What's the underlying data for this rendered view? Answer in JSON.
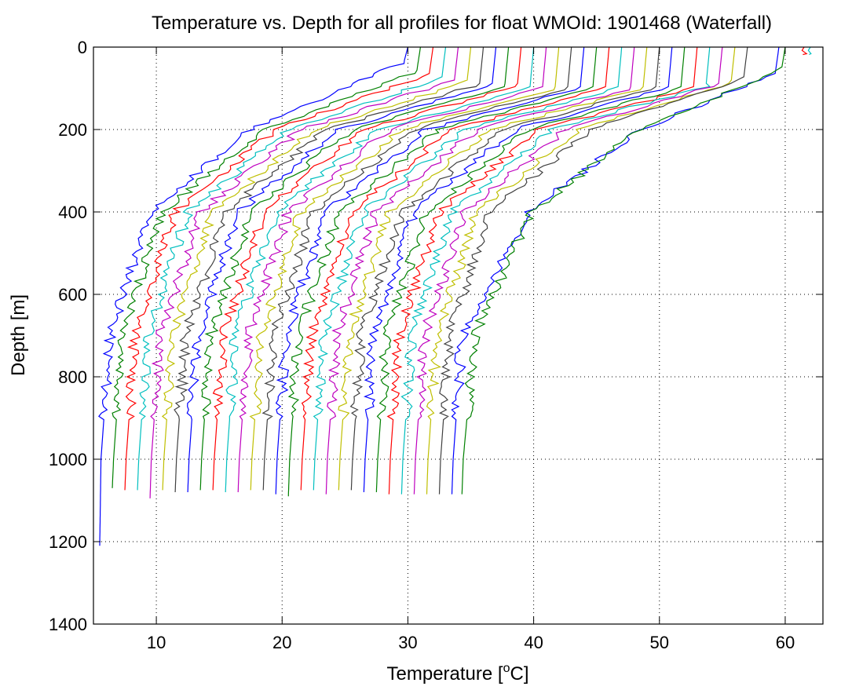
{
  "chart_data": {
    "type": "line",
    "title": "Temperature vs. Depth for all profiles for float WMOId: 1901468 (Waterfall)",
    "xlabel": "Temperature [",
    "xlabel_sup": "o",
    "xlabel_unit": "C]",
    "ylabel": "Depth [m]",
    "xlim": [
      5,
      63
    ],
    "ylim": [
      0,
      1400
    ],
    "y_reversed": true,
    "grid": true,
    "x_ticks": [
      10,
      20,
      30,
      40,
      50,
      60
    ],
    "y_ticks": [
      0,
      200,
      400,
      600,
      800,
      1000,
      1200,
      1400
    ],
    "x_tick_labels": [
      "10",
      "20",
      "30",
      "40",
      "50",
      "60"
    ],
    "y_tick_labels": [
      "0",
      "200",
      "400",
      "600",
      "800",
      "1000",
      "1200",
      "1400"
    ],
    "legend": "none",
    "offset_per_profile_degC": 1,
    "color_cycle": [
      "#0000ff",
      "#008000",
      "#ff0000",
      "#00bfbf",
      "#bf00bf",
      "#bfbf00",
      "#404040"
    ],
    "profiles": [
      {
        "surface_temp": 30.0,
        "mld": 35,
        "t200": 17.5,
        "t400": 9.5,
        "t700": 6.3,
        "t1000": 5.6,
        "max_depth": 1210
      },
      {
        "surface_temp": 31.0,
        "mld": 60,
        "t200": 18.5,
        "t400": 10.5,
        "t700": 7.3,
        "t1000": 6.6,
        "max_depth": 1070
      },
      {
        "surface_temp": 32.0,
        "mld": 65,
        "t200": 19.5,
        "t400": 11.5,
        "t700": 8.3,
        "t1000": 7.6,
        "max_depth": 1075
      },
      {
        "surface_temp": 33.0,
        "mld": 75,
        "t200": 20.5,
        "t400": 12.5,
        "t700": 9.3,
        "t1000": 8.6,
        "max_depth": 1075
      },
      {
        "surface_temp": 34.0,
        "mld": 80,
        "t200": 21.5,
        "t400": 13.5,
        "t700": 10.3,
        "t1000": 9.6,
        "max_depth": 1095
      },
      {
        "surface_temp": 35.0,
        "mld": 85,
        "t200": 22.5,
        "t400": 14.5,
        "t700": 11.3,
        "t1000": 10.6,
        "max_depth": 1075
      },
      {
        "surface_temp": 36.0,
        "mld": 90,
        "t200": 23.5,
        "t400": 15.5,
        "t700": 12.3,
        "t1000": 11.6,
        "max_depth": 1080
      },
      {
        "surface_temp": 37.0,
        "mld": 90,
        "t200": 24.5,
        "t400": 16.5,
        "t700": 13.3,
        "t1000": 12.6,
        "max_depth": 1080
      },
      {
        "surface_temp": 38.0,
        "mld": 95,
        "t200": 25.5,
        "t400": 17.5,
        "t700": 14.3,
        "t1000": 13.6,
        "max_depth": 1075
      },
      {
        "surface_temp": 39.0,
        "mld": 95,
        "t200": 26.5,
        "t400": 18.5,
        "t700": 15.3,
        "t1000": 14.6,
        "max_depth": 1075
      },
      {
        "surface_temp": 40.0,
        "mld": 100,
        "t200": 27.5,
        "t400": 19.5,
        "t700": 16.3,
        "t1000": 15.6,
        "max_depth": 1080
      },
      {
        "surface_temp": 41.0,
        "mld": 100,
        "t200": 28.5,
        "t400": 20.5,
        "t700": 17.3,
        "t1000": 16.6,
        "max_depth": 1080
      },
      {
        "surface_temp": 42.0,
        "mld": 100,
        "t200": 29.5,
        "t400": 21.5,
        "t700": 18.3,
        "t1000": 17.6,
        "max_depth": 1075
      },
      {
        "surface_temp": 43.0,
        "mld": 100,
        "t200": 30.5,
        "t400": 22.5,
        "t700": 19.3,
        "t1000": 18.6,
        "max_depth": 1075
      },
      {
        "surface_temp": 44.0,
        "mld": 100,
        "t200": 31.5,
        "t400": 23.5,
        "t700": 20.3,
        "t1000": 19.6,
        "max_depth": 1085
      },
      {
        "surface_temp": 45.0,
        "mld": 100,
        "t200": 32.5,
        "t400": 24.5,
        "t700": 21.3,
        "t1000": 20.6,
        "max_depth": 1090
      },
      {
        "surface_temp": 46.0,
        "mld": 100,
        "t200": 33.5,
        "t400": 25.5,
        "t700": 22.3,
        "t1000": 21.6,
        "max_depth": 1075
      },
      {
        "surface_temp": 47.0,
        "mld": 100,
        "t200": 34.5,
        "t400": 26.5,
        "t700": 23.3,
        "t1000": 22.6,
        "max_depth": 1075
      },
      {
        "surface_temp": 48.0,
        "mld": 100,
        "t200": 35.5,
        "t400": 27.5,
        "t700": 24.3,
        "t1000": 23.6,
        "max_depth": 1085
      },
      {
        "surface_temp": 49.0,
        "mld": 100,
        "t200": 36.5,
        "t400": 28.5,
        "t700": 25.3,
        "t1000": 24.6,
        "max_depth": 1075
      },
      {
        "surface_temp": 50.0,
        "mld": 100,
        "t200": 37.5,
        "t400": 29.5,
        "t700": 26.3,
        "t1000": 25.6,
        "max_depth": 1075
      },
      {
        "surface_temp": 51.0,
        "mld": 100,
        "t200": 38.5,
        "t400": 30.5,
        "t700": 27.3,
        "t1000": 26.6,
        "max_depth": 1080
      },
      {
        "surface_temp": 52.0,
        "mld": 100,
        "t200": 39.5,
        "t400": 31.5,
        "t700": 28.3,
        "t1000": 27.6,
        "max_depth": 1080
      },
      {
        "surface_temp": 53.0,
        "mld": 100,
        "t200": 40.5,
        "t400": 32.5,
        "t700": 29.3,
        "t1000": 28.6,
        "max_depth": 1085
      },
      {
        "surface_temp": 54.0,
        "mld": 95,
        "t200": 41.5,
        "t400": 33.5,
        "t700": 30.3,
        "t1000": 29.6,
        "max_depth": 1085
      },
      {
        "surface_temp": 55.0,
        "mld": 90,
        "t200": 42.5,
        "t400": 34.5,
        "t700": 31.3,
        "t1000": 30.6,
        "max_depth": 1085
      },
      {
        "surface_temp": 56.0,
        "mld": 85,
        "t200": 43.5,
        "t400": 35.5,
        "t700": 32.3,
        "t1000": 31.6,
        "max_depth": 1085
      },
      {
        "surface_temp": 57.0,
        "mld": 75,
        "t200": 44.5,
        "t400": 36.5,
        "t700": 33.3,
        "t1000": 32.6,
        "max_depth": 1085
      },
      {
        "surface_temp": 59.5,
        "mld": 65,
        "t200": 48.5,
        "t400": 39.5,
        "t700": 34.3,
        "t1000": 33.6,
        "max_depth": 1085
      },
      {
        "surface_temp": 60.0,
        "mld": 55,
        "t200": 48.5,
        "t400": 39.8,
        "t700": 35.3,
        "t1000": 34.4,
        "max_depth": 1085
      },
      {
        "surface_temp": 61.5,
        "mld": 15,
        "t200": 61.5,
        "t400": 61.5,
        "t700": 61.5,
        "t1000": 61.5,
        "max_depth": 18
      },
      {
        "surface_temp": 62.0,
        "mld": 15,
        "t200": 62.0,
        "t400": 62.0,
        "t700": 62.0,
        "t1000": 62.0,
        "max_depth": 18
      }
    ]
  }
}
